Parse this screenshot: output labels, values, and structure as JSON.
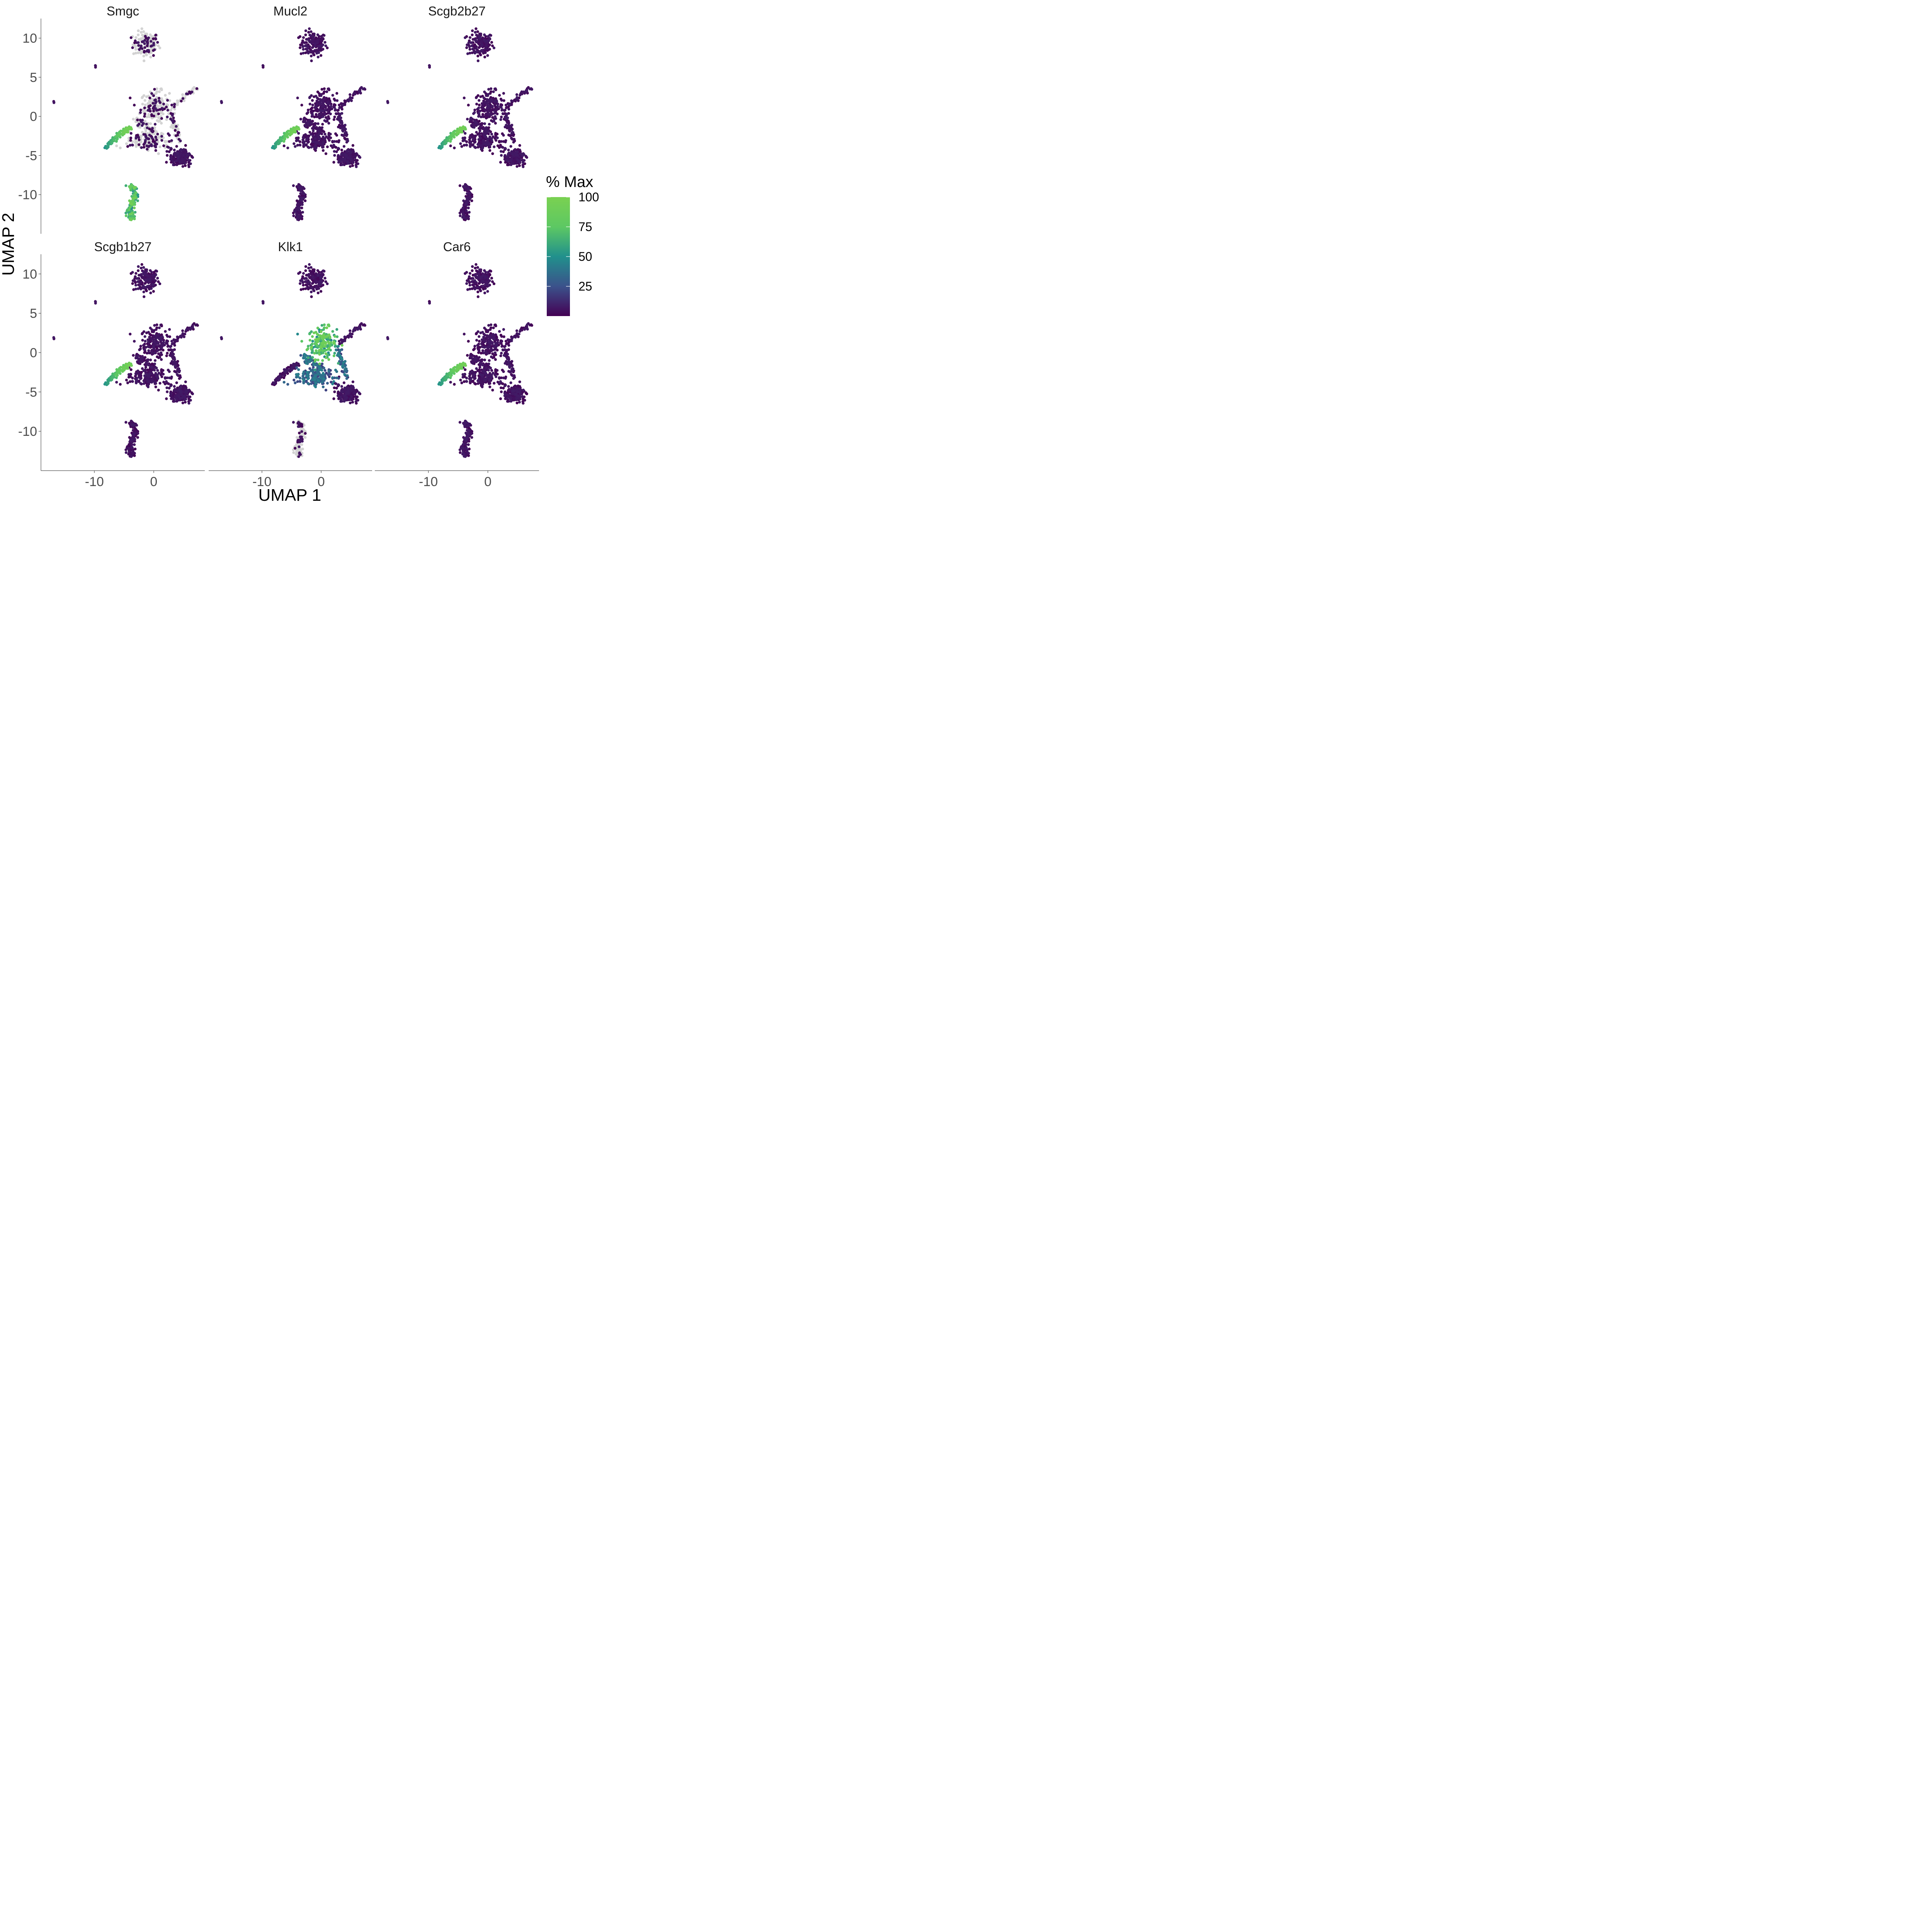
{
  "chart_data": {
    "type": "scatter",
    "subtype": "umap-feature-plot",
    "xlabel": "UMAP 1",
    "ylabel": "UMAP 2",
    "xlim": [
      -19,
      8.6
    ],
    "ylim": [
      -15,
      12.5
    ],
    "x_ticks": [
      -10,
      0
    ],
    "x_tick_labels": [
      "-10",
      "0"
    ],
    "y_ticks": [
      10,
      5,
      0,
      -5,
      -10
    ],
    "y_tick_labels": [
      "10",
      "5",
      "0",
      "-5",
      "-10"
    ],
    "grid": false,
    "panels": [
      {
        "gene": "Smgc",
        "hot_clusters": [
          "bottom",
          "ribbon"
        ],
        "grey_clusters": [
          "top",
          "upper-center",
          "left-ribbon",
          "right-arm",
          "mid"
        ]
      },
      {
        "gene": "Mucl2",
        "hot_clusters": [
          "ribbon"
        ],
        "grey_clusters": []
      },
      {
        "gene": "Scgb2b27",
        "hot_clusters": [
          "ribbon"
        ],
        "grey_clusters": []
      },
      {
        "gene": "Scgb1b27",
        "hot_clusters": [
          "ribbon"
        ],
        "grey_clusters": []
      },
      {
        "gene": "Klk1",
        "hot_clusters": [
          "upper-center",
          "mid"
        ],
        "grey_clusters": [
          "bottom"
        ]
      },
      {
        "gene": "Car6",
        "hot_clusters": [
          "ribbon"
        ],
        "grey_clusters": []
      }
    ],
    "clusters": [
      {
        "name": "top",
        "x_range": [
          -3.8,
          1.2
        ],
        "y_range": [
          7.2,
          10.9
        ]
      },
      {
        "name": "isolated-far",
        "x": -16.8,
        "y": 1.8
      },
      {
        "name": "isolated-small",
        "x": -9.8,
        "y": 6.4
      },
      {
        "name": "upper-center",
        "x_range": [
          -2.5,
          3.2
        ],
        "y_range": [
          -1,
          3.2
        ]
      },
      {
        "name": "right-arm",
        "x_range": [
          3,
          7.4
        ],
        "y_range": [
          1,
          4
        ]
      },
      {
        "name": "ribbon",
        "x_range": [
          -8,
          -3.8
        ],
        "y_range": [
          -4.2,
          -1.4
        ]
      },
      {
        "name": "mid",
        "x_range": [
          -4,
          3
        ],
        "y_range": [
          -4.5,
          -2
        ]
      },
      {
        "name": "bottom-right",
        "x_range": [
          2,
          6.5
        ],
        "y_range": [
          -6.6,
          -3.5
        ]
      },
      {
        "name": "bottom",
        "x_range": [
          -5,
          -2.5
        ],
        "y_range": [
          -13.5,
          -8.5
        ]
      }
    ],
    "legend": {
      "title": "% Max",
      "position": "right",
      "ticks": [
        "100",
        "75",
        "50",
        "25"
      ],
      "tick_values": [
        100,
        75,
        50,
        25
      ],
      "colorscale": [
        "#440154",
        "#3b528b",
        "#21908c",
        "#5dc863",
        "#7ad151"
      ],
      "na_color": "#d3d3d3"
    }
  }
}
